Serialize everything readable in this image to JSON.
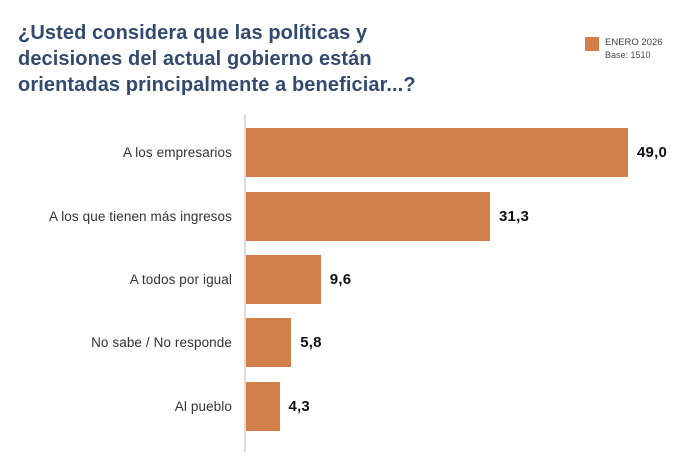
{
  "chart_data": {
    "type": "bar",
    "orientation": "horizontal",
    "title": "¿Usted considera que las políticas y decisiones del actual gobierno están orientadas principalmente a beneficiar...?",
    "title_lines": [
      "¿Usted considera que las políticas y",
      "decisiones del actual gobierno están",
      "orientadas principalmente a beneficiar...?"
    ],
    "categories": [
      "A los empresarios",
      "A los que tienen más ingresos",
      "A todos por igual",
      "No sabe / No responde",
      "Al pueblo"
    ],
    "values": [
      49.0,
      31.3,
      9.6,
      5.8,
      4.3
    ],
    "value_labels": [
      "49,0",
      "31,3",
      "9,6",
      "5,8",
      "4,3"
    ],
    "xlim": [
      0,
      52
    ],
    "grid": false,
    "legend": {
      "position": "top-right",
      "label": "ENERO 2026",
      "base": "Base: 1510",
      "color": "#d2804a"
    },
    "bar_color": "#d2804a",
    "title_color": "#334a70",
    "axis_color": "#dcdcdc"
  }
}
